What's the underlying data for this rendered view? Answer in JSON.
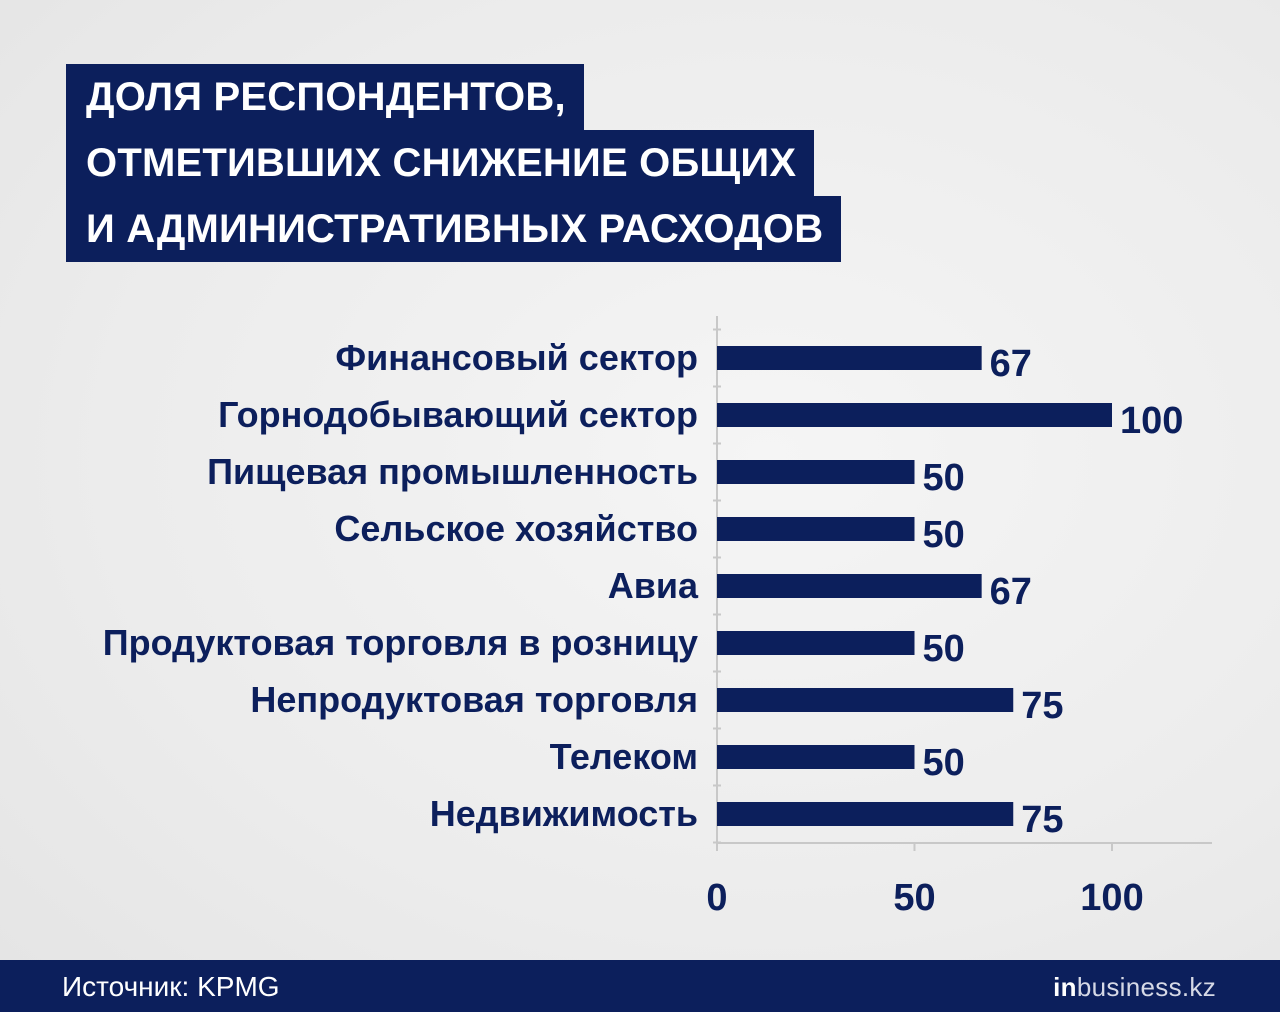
{
  "title_lines": [
    "ДОЛЯ РЕСПОНДЕНТОВ,",
    "ОТМЕТИВШИХ СНИЖЕНИЕ ОБЩИХ",
    "И АДМИНИСТРАТИВНЫХ РАСХОДОВ"
  ],
  "colors": {
    "bar": "#0c1f5c",
    "text": "#0c1f5c",
    "axis": "#c8c8c8",
    "title_bg": "#0c1f5c",
    "footer_bg": "#0c1f5c"
  },
  "chart_data": {
    "type": "bar",
    "orientation": "horizontal",
    "categories": [
      "Финансовый сектор",
      "Горнодобывающий сектор",
      "Пищевая промышленность",
      "Сельское хозяйство",
      "Авиа",
      "Продуктовая торговля в розницу",
      "Непродуктовая торговля",
      "Телеком",
      "Недвижимость"
    ],
    "values": [
      67,
      100,
      50,
      50,
      67,
      50,
      75,
      50,
      75
    ],
    "value_labels": [
      "67",
      "100",
      "50",
      "50",
      "67",
      "50",
      "75",
      "50",
      "75"
    ],
    "xticks": [
      0,
      50,
      100
    ],
    "xtick_labels": [
      "0",
      "50",
      "100"
    ],
    "xlim": [
      0,
      125
    ],
    "grid": false,
    "legend": "none"
  },
  "footer": {
    "source": "Источник: KPMG",
    "logo_in": "in",
    "logo_rest": "business.kz"
  }
}
